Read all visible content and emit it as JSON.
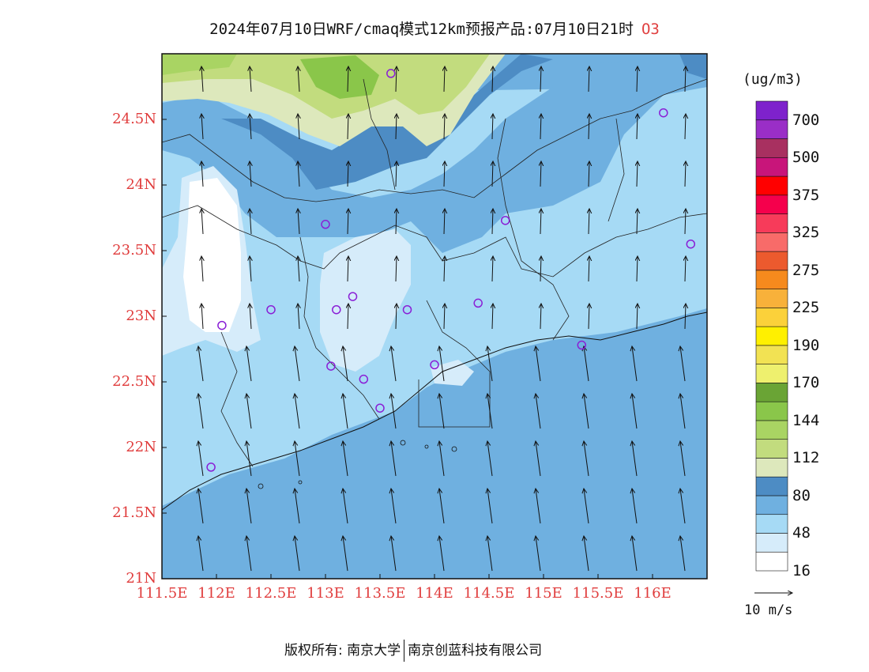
{
  "title": {
    "text": "2024年07月10日WRF/cmaq模式12km预报产品:07月10日21时",
    "species": "O3"
  },
  "axes": {
    "lat_labels": [
      "24.5N",
      "24N",
      "23.5N",
      "23N",
      "22.5N",
      "22N",
      "21.5N",
      "21N"
    ],
    "lon_labels": [
      "111.5E",
      "112E",
      "112.5E",
      "113E",
      "113.5E",
      "114E",
      "114.5E",
      "115E",
      "115.5E",
      "116E"
    ]
  },
  "colorbar": {
    "unit": "(ug/m3)",
    "labels": [
      "700",
      "500",
      "375",
      "325",
      "275",
      "225",
      "190",
      "170",
      "144",
      "112",
      "80",
      "48",
      "16"
    ],
    "colors": [
      "#ffffff",
      "#d6ecfa",
      "#a6daf5",
      "#6fb0e0",
      "#4d8cc4",
      "#dde8bc",
      "#c2dc7e",
      "#a9d463",
      "#8ac64a",
      "#6aa435",
      "#eef06e",
      "#f2e253",
      "#fff000",
      "#fbd13a",
      "#f8b13a",
      "#f68a1d",
      "#ec5a2e",
      "#f86b69",
      "#f73b5a",
      "#f5004c",
      "#ff0000",
      "#c8157a",
      "#a83060",
      "#9a2ec7",
      "#7e22cc"
    ]
  },
  "wind_vector": {
    "label": "10 m/s"
  },
  "footer": {
    "left": "版权所有: 南京大学",
    "right": "南京创蓝科技有限公司"
  },
  "stations": [
    {
      "lon": 113.6,
      "lat": 24.85
    },
    {
      "lon": 116.1,
      "lat": 24.55
    },
    {
      "lon": 113.0,
      "lat": 23.7
    },
    {
      "lon": 114.65,
      "lat": 23.73
    },
    {
      "lon": 116.35,
      "lat": 23.55
    },
    {
      "lon": 113.25,
      "lat": 23.15
    },
    {
      "lon": 112.5,
      "lat": 23.05
    },
    {
      "lon": 113.1,
      "lat": 23.05
    },
    {
      "lon": 113.75,
      "lat": 23.05
    },
    {
      "lon": 114.4,
      "lat": 23.1
    },
    {
      "lon": 112.05,
      "lat": 22.93
    },
    {
      "lon": 113.05,
      "lat": 22.62
    },
    {
      "lon": 113.35,
      "lat": 22.52
    },
    {
      "lon": 114.0,
      "lat": 22.63
    },
    {
      "lon": 115.35,
      "lat": 22.78
    },
    {
      "lon": 113.5,
      "lat": 22.3
    },
    {
      "lon": 111.95,
      "lat": 21.85
    }
  ]
}
